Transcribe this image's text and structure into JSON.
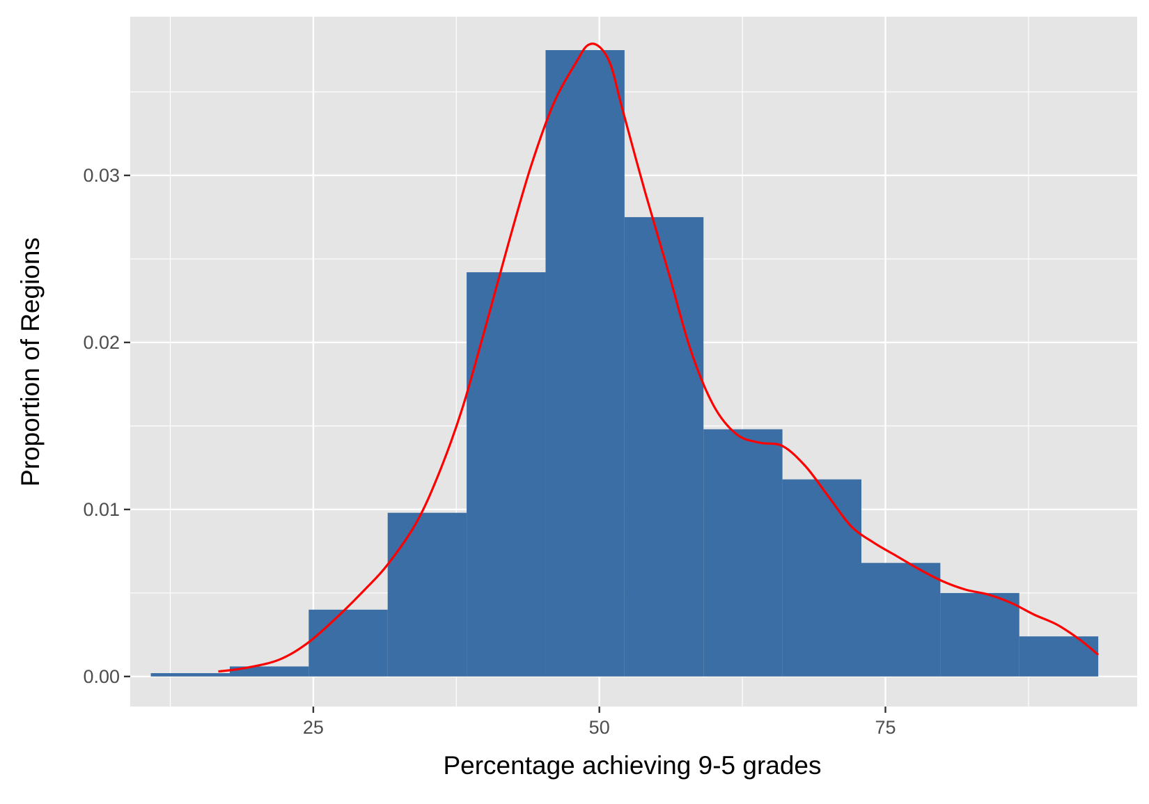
{
  "chart_data": {
    "type": "bar",
    "subtype": "histogram_with_density",
    "title": "",
    "xlabel": "Percentage achieving 9-5 grades",
    "ylabel": "Proportion of Regions",
    "xlim": [
      9,
      97
    ],
    "ylim": [
      -0.0018,
      0.0395
    ],
    "x_ticks": [
      25,
      50,
      75
    ],
    "x_tick_labels": [
      "25",
      "50",
      "75"
    ],
    "y_ticks": [
      0,
      0.01,
      0.02,
      0.03
    ],
    "y_tick_labels": [
      "0.00",
      "0.01",
      "0.02",
      "0.03"
    ],
    "grid": true,
    "legend": "none",
    "bins": [
      {
        "x0": 10.8,
        "x1": 17.7,
        "value": 0.0002
      },
      {
        "x0": 17.7,
        "x1": 24.6,
        "value": 0.0006
      },
      {
        "x0": 24.6,
        "x1": 31.5,
        "value": 0.004
      },
      {
        "x0": 31.5,
        "x1": 38.4,
        "value": 0.0098
      },
      {
        "x0": 38.4,
        "x1": 45.3,
        "value": 0.0242
      },
      {
        "x0": 45.3,
        "x1": 52.2,
        "value": 0.0375
      },
      {
        "x0": 52.2,
        "x1": 59.1,
        "value": 0.0275
      },
      {
        "x0": 59.1,
        "x1": 66.0,
        "value": 0.0148
      },
      {
        "x0": 66.0,
        "x1": 72.9,
        "value": 0.0118
      },
      {
        "x0": 72.9,
        "x1": 79.8,
        "value": 0.0068
      },
      {
        "x0": 79.8,
        "x1": 86.7,
        "value": 0.005
      },
      {
        "x0": 86.7,
        "x1": 93.6,
        "value": 0.0024
      }
    ],
    "density": {
      "x": [
        16.7,
        19,
        22,
        24.5,
        27,
        29.5,
        31.5,
        34,
        36,
        38,
        40,
        42,
        44,
        46,
        48,
        49,
        50,
        51,
        52,
        54,
        56,
        58,
        60,
        62,
        64,
        66,
        68,
        70,
        72,
        74,
        76,
        78,
        80,
        82,
        84,
        86,
        88,
        90,
        92,
        93.6
      ],
      "y": [
        0.0003,
        0.0005,
        0.001,
        0.002,
        0.0035,
        0.0052,
        0.0067,
        0.0092,
        0.0122,
        0.016,
        0.0208,
        0.0258,
        0.0305,
        0.0343,
        0.0368,
        0.0378,
        0.0377,
        0.0366,
        0.034,
        0.029,
        0.0243,
        0.0195,
        0.0162,
        0.0145,
        0.014,
        0.0138,
        0.0126,
        0.0108,
        0.009,
        0.008,
        0.0072,
        0.0064,
        0.0057,
        0.0052,
        0.0049,
        0.0044,
        0.0037,
        0.0031,
        0.0022,
        0.0013
      ]
    },
    "colors": {
      "bar_fill": "#3b6ea5",
      "density_line": "#ff0000",
      "panel_background": "#e5e5e5",
      "grid": "#ffffff"
    }
  }
}
